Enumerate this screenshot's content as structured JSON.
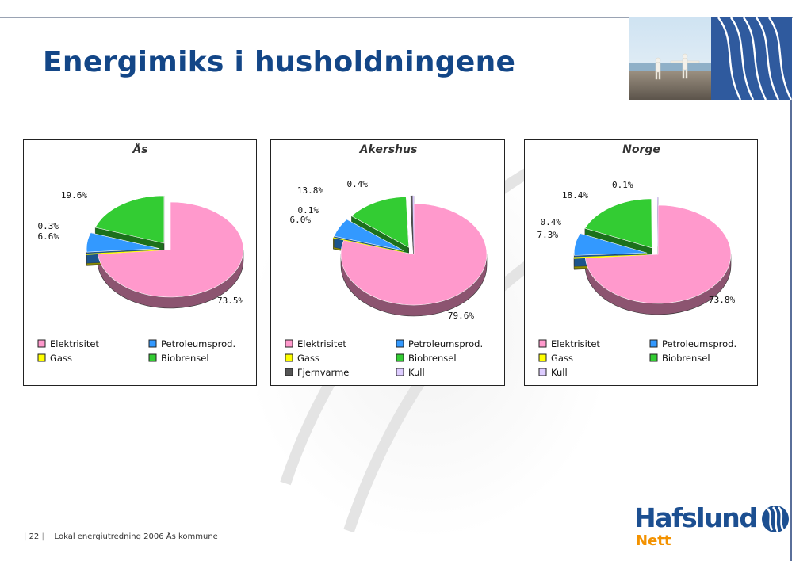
{
  "slide": {
    "title": "Energimiks i husholdningene",
    "page_number": "22",
    "footer_text": "Lokal energiutredning 2006 Ås kommune"
  },
  "logo": {
    "name": "Hafslund",
    "sub": "Nett"
  },
  "colors": {
    "title": "#134687",
    "Elektrisitet": "#ff99cc",
    "Petroleumsprod.": "#3399ff",
    "Gass": "#ffff00",
    "Biobrensel": "#33cc33",
    "Fjernvarme": "#555555",
    "Kull": "#ddccff"
  },
  "chart_data": [
    {
      "type": "pie",
      "title": "Ås",
      "slices": [
        {
          "name": "Elektrisitet",
          "value": 73.5,
          "label": "73.5%"
        },
        {
          "name": "Gass",
          "value": 0.3,
          "label": "0.3%"
        },
        {
          "name": "Petroleumsprod.",
          "value": 6.6,
          "label": "6.6%"
        },
        {
          "name": "Biobrensel",
          "value": 19.6,
          "label": "19.6%"
        }
      ],
      "legend": [
        "Elektrisitet",
        "Petroleumsprod.",
        "Gass",
        "Biobrensel"
      ],
      "legend_position": "bottom"
    },
    {
      "type": "pie",
      "title": "Akershus",
      "slices": [
        {
          "name": "Elektrisitet",
          "value": 79.6,
          "label": "79.6%"
        },
        {
          "name": "Gass",
          "value": 0.1,
          "label": "0.1%"
        },
        {
          "name": "Petroleumsprod.",
          "value": 6.0,
          "label": "6.0%"
        },
        {
          "name": "Biobrensel",
          "value": 13.8,
          "label": "13.8%"
        },
        {
          "name": "Fjernvarme",
          "value": 0.4,
          "label": "0.4%"
        },
        {
          "name": "Kull",
          "value": 0.2,
          "label": ""
        }
      ],
      "legend": [
        "Elektrisitet",
        "Petroleumsprod.",
        "Gass",
        "Biobrensel",
        "Fjernvarme",
        "Kull"
      ],
      "legend_position": "bottom"
    },
    {
      "type": "pie",
      "title": "Norge",
      "slices": [
        {
          "name": "Elektrisitet",
          "value": 73.8,
          "label": "73.8%"
        },
        {
          "name": "Gass",
          "value": 0.4,
          "label": "0.4%"
        },
        {
          "name": "Petroleumsprod.",
          "value": 7.3,
          "label": "7.3%"
        },
        {
          "name": "Biobrensel",
          "value": 18.4,
          "label": "18.4%"
        },
        {
          "name": "Kull",
          "value": 0.1,
          "label": "0.1%"
        }
      ],
      "legend": [
        "Elektrisitet",
        "Petroleumsprod.",
        "Gass",
        "Biobrensel",
        "Kull"
      ],
      "legend_position": "bottom"
    }
  ]
}
